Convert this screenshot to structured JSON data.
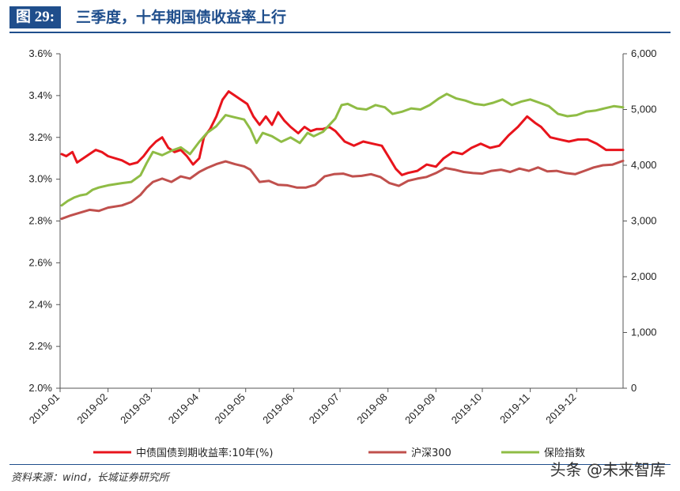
{
  "header": {
    "figure_label": "图 29:",
    "title": "三季度，十年期国债收益率上行"
  },
  "footer": {
    "source": "资料来源：wind，长城证券研究所",
    "watermark": "头条 @未来智库"
  },
  "chart_data": {
    "type": "line",
    "x_tick_labels": [
      "2019-01",
      "2019-02",
      "2019-03",
      "2019-04",
      "2019-05",
      "2019-06",
      "2019-07",
      "2019-08",
      "2019-09",
      "2019-10",
      "2019-11",
      "2019-12"
    ],
    "y_left": {
      "ticks": [
        "2.0%",
        "2.2%",
        "2.4%",
        "2.6%",
        "2.8%",
        "3.0%",
        "3.2%",
        "3.4%",
        "3.6%"
      ],
      "ylim": [
        2.0,
        3.6
      ]
    },
    "y_right": {
      "ticks": [
        "0",
        "1,000",
        "2,000",
        "3,000",
        "4,000",
        "5,000",
        "6,000"
      ],
      "ylim": [
        0,
        6000
      ]
    },
    "grid": false,
    "legend_position": "bottom",
    "series": [
      {
        "name": "中债国债到期收益率:10年(%)",
        "axis": "left",
        "color": "#e8141c",
        "points": [
          [
            "2019-01-02",
            3.12
          ],
          [
            "2019-01-05",
            3.11
          ],
          [
            "2019-01-09",
            3.13
          ],
          [
            "2019-01-12",
            3.08
          ],
          [
            "2019-01-16",
            3.1
          ],
          [
            "2019-01-20",
            3.12
          ],
          [
            "2019-01-24",
            3.14
          ],
          [
            "2019-01-28",
            3.13
          ],
          [
            "2019-02-01",
            3.11
          ],
          [
            "2019-02-10",
            3.09
          ],
          [
            "2019-02-15",
            3.07
          ],
          [
            "2019-02-20",
            3.08
          ],
          [
            "2019-02-24",
            3.11
          ],
          [
            "2019-02-28",
            3.15
          ],
          [
            "2019-03-04",
            3.18
          ],
          [
            "2019-03-08",
            3.2
          ],
          [
            "2019-03-12",
            3.15
          ],
          [
            "2019-03-16",
            3.13
          ],
          [
            "2019-03-20",
            3.14
          ],
          [
            "2019-03-24",
            3.11
          ],
          [
            "2019-03-28",
            3.07
          ],
          [
            "2019-04-01",
            3.1
          ],
          [
            "2019-04-04",
            3.2
          ],
          [
            "2019-04-08",
            3.24
          ],
          [
            "2019-04-12",
            3.3
          ],
          [
            "2019-04-16",
            3.38
          ],
          [
            "2019-04-20",
            3.42
          ],
          [
            "2019-04-24",
            3.4
          ],
          [
            "2019-04-28",
            3.38
          ],
          [
            "2019-05-02",
            3.36
          ],
          [
            "2019-05-06",
            3.3
          ],
          [
            "2019-05-10",
            3.26
          ],
          [
            "2019-05-14",
            3.3
          ],
          [
            "2019-05-18",
            3.26
          ],
          [
            "2019-05-22",
            3.32
          ],
          [
            "2019-05-26",
            3.28
          ],
          [
            "2019-05-30",
            3.25
          ],
          [
            "2019-06-04",
            3.22
          ],
          [
            "2019-06-08",
            3.25
          ],
          [
            "2019-06-12",
            3.23
          ],
          [
            "2019-06-16",
            3.24
          ],
          [
            "2019-06-20",
            3.24
          ],
          [
            "2019-06-24",
            3.25
          ],
          [
            "2019-06-28",
            3.23
          ],
          [
            "2019-07-04",
            3.18
          ],
          [
            "2019-07-10",
            3.16
          ],
          [
            "2019-07-16",
            3.18
          ],
          [
            "2019-07-22",
            3.17
          ],
          [
            "2019-07-28",
            3.16
          ],
          [
            "2019-08-02",
            3.1
          ],
          [
            "2019-08-06",
            3.05
          ],
          [
            "2019-08-10",
            3.02
          ],
          [
            "2019-08-14",
            3.03
          ],
          [
            "2019-08-20",
            3.04
          ],
          [
            "2019-08-26",
            3.07
          ],
          [
            "2019-09-01",
            3.06
          ],
          [
            "2019-09-06",
            3.1
          ],
          [
            "2019-09-12",
            3.13
          ],
          [
            "2019-09-18",
            3.12
          ],
          [
            "2019-09-24",
            3.15
          ],
          [
            "2019-09-30",
            3.17
          ],
          [
            "2019-10-06",
            3.15
          ],
          [
            "2019-10-12",
            3.16
          ],
          [
            "2019-10-18",
            3.21
          ],
          [
            "2019-10-24",
            3.25
          ],
          [
            "2019-10-30",
            3.3
          ],
          [
            "2019-11-04",
            3.27
          ],
          [
            "2019-11-08",
            3.25
          ],
          [
            "2019-11-14",
            3.2
          ],
          [
            "2019-11-20",
            3.19
          ],
          [
            "2019-11-26",
            3.18
          ],
          [
            "2019-12-02",
            3.19
          ],
          [
            "2019-12-08",
            3.19
          ],
          [
            "2019-12-14",
            3.17
          ],
          [
            "2019-12-20",
            3.14
          ],
          [
            "2019-12-26",
            3.14
          ],
          [
            "2019-12-31",
            3.14
          ]
        ]
      },
      {
        "name": "沪深300",
        "axis": "right",
        "color": "#c0504d",
        "points": [
          [
            "2019-01-02",
            3040
          ],
          [
            "2019-01-08",
            3100
          ],
          [
            "2019-01-14",
            3150
          ],
          [
            "2019-01-20",
            3200
          ],
          [
            "2019-01-26",
            3180
          ],
          [
            "2019-02-01",
            3240
          ],
          [
            "2019-02-10",
            3280
          ],
          [
            "2019-02-16",
            3340
          ],
          [
            "2019-02-22",
            3470
          ],
          [
            "2019-02-26",
            3600
          ],
          [
            "2019-03-02",
            3700
          ],
          [
            "2019-03-08",
            3760
          ],
          [
            "2019-03-14",
            3700
          ],
          [
            "2019-03-20",
            3800
          ],
          [
            "2019-03-26",
            3760
          ],
          [
            "2019-04-01",
            3880
          ],
          [
            "2019-04-06",
            3950
          ],
          [
            "2019-04-12",
            4020
          ],
          [
            "2019-04-18",
            4070
          ],
          [
            "2019-04-24",
            4020
          ],
          [
            "2019-04-30",
            3980
          ],
          [
            "2019-05-04",
            3920
          ],
          [
            "2019-05-10",
            3700
          ],
          [
            "2019-05-16",
            3720
          ],
          [
            "2019-05-22",
            3650
          ],
          [
            "2019-05-28",
            3640
          ],
          [
            "2019-06-03",
            3600
          ],
          [
            "2019-06-09",
            3600
          ],
          [
            "2019-06-15",
            3650
          ],
          [
            "2019-06-21",
            3800
          ],
          [
            "2019-06-27",
            3840
          ],
          [
            "2019-07-03",
            3850
          ],
          [
            "2019-07-09",
            3800
          ],
          [
            "2019-07-15",
            3810
          ],
          [
            "2019-07-21",
            3840
          ],
          [
            "2019-07-27",
            3790
          ],
          [
            "2019-08-02",
            3680
          ],
          [
            "2019-08-08",
            3630
          ],
          [
            "2019-08-14",
            3720
          ],
          [
            "2019-08-20",
            3760
          ],
          [
            "2019-08-26",
            3790
          ],
          [
            "2019-09-01",
            3860
          ],
          [
            "2019-09-07",
            3950
          ],
          [
            "2019-09-13",
            3920
          ],
          [
            "2019-09-19",
            3880
          ],
          [
            "2019-09-25",
            3860
          ],
          [
            "2019-10-01",
            3850
          ],
          [
            "2019-10-07",
            3900
          ],
          [
            "2019-10-13",
            3920
          ],
          [
            "2019-10-19",
            3880
          ],
          [
            "2019-10-25",
            3940
          ],
          [
            "2019-10-31",
            3900
          ],
          [
            "2019-11-06",
            3960
          ],
          [
            "2019-11-12",
            3890
          ],
          [
            "2019-11-18",
            3900
          ],
          [
            "2019-11-24",
            3860
          ],
          [
            "2019-11-30",
            3840
          ],
          [
            "2019-12-06",
            3900
          ],
          [
            "2019-12-12",
            3960
          ],
          [
            "2019-12-18",
            4000
          ],
          [
            "2019-12-24",
            4010
          ],
          [
            "2019-12-31",
            4080
          ]
        ]
      },
      {
        "name": "保险指数",
        "axis": "right",
        "color": "#8fbc45",
        "points": [
          [
            "2019-01-02",
            3280
          ],
          [
            "2019-01-06",
            3360
          ],
          [
            "2019-01-10",
            3420
          ],
          [
            "2019-01-14",
            3460
          ],
          [
            "2019-01-18",
            3480
          ],
          [
            "2019-01-22",
            3560
          ],
          [
            "2019-01-26",
            3600
          ],
          [
            "2019-02-01",
            3640
          ],
          [
            "2019-02-10",
            3680
          ],
          [
            "2019-02-16",
            3700
          ],
          [
            "2019-02-22",
            3820
          ],
          [
            "2019-02-26",
            4040
          ],
          [
            "2019-03-02",
            4240
          ],
          [
            "2019-03-08",
            4180
          ],
          [
            "2019-03-14",
            4260
          ],
          [
            "2019-03-20",
            4320
          ],
          [
            "2019-03-26",
            4200
          ],
          [
            "2019-04-01",
            4420
          ],
          [
            "2019-04-06",
            4580
          ],
          [
            "2019-04-12",
            4700
          ],
          [
            "2019-04-18",
            4900
          ],
          [
            "2019-04-24",
            4860
          ],
          [
            "2019-04-30",
            4820
          ],
          [
            "2019-05-04",
            4650
          ],
          [
            "2019-05-08",
            4400
          ],
          [
            "2019-05-12",
            4580
          ],
          [
            "2019-05-18",
            4520
          ],
          [
            "2019-05-24",
            4420
          ],
          [
            "2019-05-30",
            4500
          ],
          [
            "2019-06-05",
            4400
          ],
          [
            "2019-06-10",
            4580
          ],
          [
            "2019-06-14",
            4520
          ],
          [
            "2019-06-20",
            4600
          ],
          [
            "2019-06-24",
            4720
          ],
          [
            "2019-06-28",
            4840
          ],
          [
            "2019-07-02",
            5080
          ],
          [
            "2019-07-06",
            5100
          ],
          [
            "2019-07-12",
            5020
          ],
          [
            "2019-07-18",
            5000
          ],
          [
            "2019-07-24",
            5080
          ],
          [
            "2019-07-30",
            5040
          ],
          [
            "2019-08-04",
            4920
          ],
          [
            "2019-08-10",
            4960
          ],
          [
            "2019-08-16",
            5020
          ],
          [
            "2019-08-22",
            5000
          ],
          [
            "2019-08-28",
            5080
          ],
          [
            "2019-09-03",
            5200
          ],
          [
            "2019-09-08",
            5280
          ],
          [
            "2019-09-14",
            5200
          ],
          [
            "2019-09-20",
            5160
          ],
          [
            "2019-09-26",
            5100
          ],
          [
            "2019-10-02",
            5080
          ],
          [
            "2019-10-08",
            5120
          ],
          [
            "2019-10-14",
            5180
          ],
          [
            "2019-10-20",
            5080
          ],
          [
            "2019-10-26",
            5140
          ],
          [
            "2019-11-01",
            5180
          ],
          [
            "2019-11-07",
            5120
          ],
          [
            "2019-11-13",
            5060
          ],
          [
            "2019-11-19",
            4920
          ],
          [
            "2019-11-25",
            4880
          ],
          [
            "2019-12-01",
            4900
          ],
          [
            "2019-12-07",
            4960
          ],
          [
            "2019-12-13",
            4980
          ],
          [
            "2019-12-19",
            5020
          ],
          [
            "2019-12-25",
            5060
          ],
          [
            "2019-12-31",
            5040
          ]
        ]
      }
    ]
  }
}
